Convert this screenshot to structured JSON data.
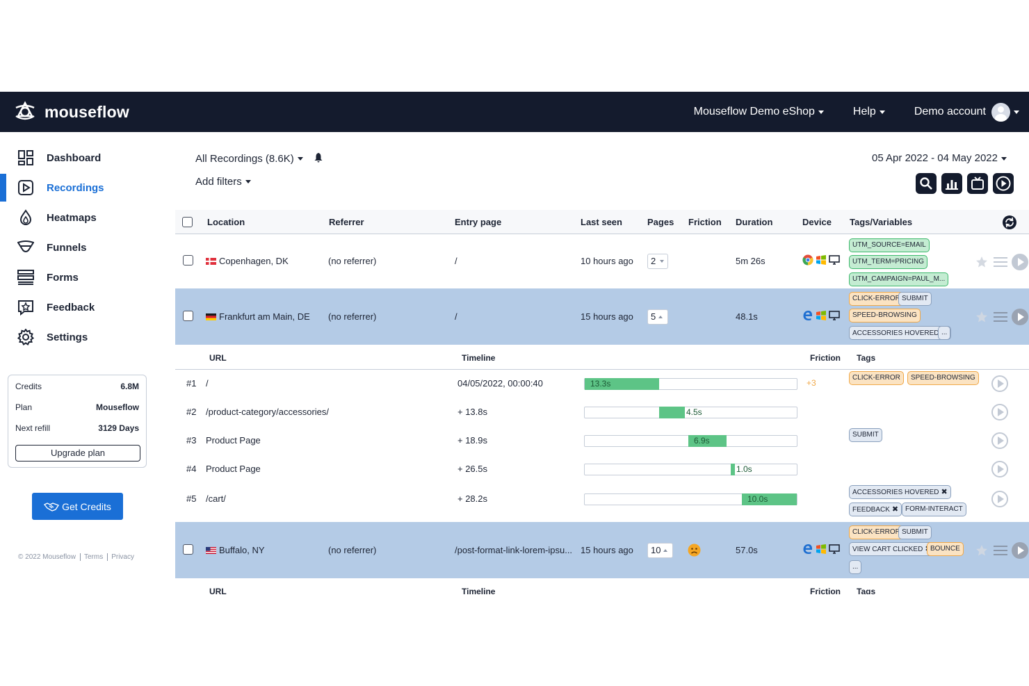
{
  "app": {
    "brand": "mouseflow",
    "accent": "#1a6fd6",
    "navbar_bg": "#141b2d"
  },
  "topnav": {
    "site": "Mouseflow Demo eShop",
    "help": "Help",
    "account": "Demo account"
  },
  "sidebar": {
    "items": [
      {
        "label": "Dashboard",
        "icon": "dashboard-icon"
      },
      {
        "label": "Recordings",
        "icon": "recordings-icon",
        "active": true
      },
      {
        "label": "Heatmaps",
        "icon": "heatmaps-icon"
      },
      {
        "label": "Funnels",
        "icon": "funnels-icon"
      },
      {
        "label": "Forms",
        "icon": "forms-icon"
      },
      {
        "label": "Feedback",
        "icon": "feedback-icon"
      },
      {
        "label": "Settings",
        "icon": "settings-icon"
      }
    ],
    "credits": {
      "credits_label": "Credits",
      "credits_value": "6.8M",
      "plan_label": "Plan",
      "plan_value": "Mouseflow",
      "refill_label": "Next refill",
      "refill_value": "3129 Days",
      "upgrade": "Upgrade plan"
    },
    "get_credits": "Get Credits",
    "footer": {
      "copyright": "© 2022 Mouseflow",
      "terms": "Terms",
      "privacy": "Privacy"
    }
  },
  "filters": {
    "recordings": "All Recordings (8.6K)",
    "add_filters": "Add filters",
    "date_range": "05 Apr 2022 - 04 May 2022"
  },
  "table": {
    "headers": {
      "location": "Location",
      "referrer": "Referrer",
      "entry": "Entry page",
      "last_seen": "Last seen",
      "pages": "Pages",
      "friction": "Friction",
      "duration": "Duration",
      "device": "Device",
      "tags": "Tags/Variables"
    },
    "rows": [
      {
        "location": "Copenhagen, DK",
        "referrer": "(no referrer)",
        "entry": "/",
        "last_seen": "10 hours ago",
        "pages": "2",
        "duration": "5m 26s",
        "tags": [
          "UTM_SOURCE=EMAIL",
          "UTM_TERM=PRICING",
          "UTM_CAMPAIGN=PAUL_M..."
        ]
      },
      {
        "location": "Frankfurt am Main, DE",
        "referrer": "(no referrer)",
        "entry": "/",
        "last_seen": "15 hours ago",
        "pages": "5",
        "duration": "48.1s",
        "tags": [
          "CLICK-ERROR",
          "SUBMIT",
          "SPEED-BROWSING",
          "ACCESSORIES HOVERED",
          "..."
        ]
      },
      {
        "location": "Buffalo, NY",
        "referrer": "(no referrer)",
        "entry": "/post-format-link-lorem-ipsu...",
        "last_seen": "15 hours ago",
        "pages": "10",
        "duration": "57.0s",
        "tags": [
          "CLICK-ERROR",
          "SUBMIT",
          "VIEW CART CLICKED",
          "BOUNCE",
          "..."
        ]
      }
    ],
    "subheaders": {
      "url": "URL",
      "timeline": "Timeline",
      "friction": "Friction",
      "tags": "Tags"
    },
    "pageviews": [
      {
        "num": "#1",
        "url": "/",
        "time": "04/05/2022, 00:00:40",
        "duration": "13.3s",
        "start": 0.0,
        "fraction": 0.35,
        "friction": "+3",
        "tags": [
          "CLICK-ERROR",
          "SPEED-BROWSING"
        ]
      },
      {
        "num": "#2",
        "url": "/product-category/accessories/",
        "time": "+ 13.8s",
        "duration": "4.5s",
        "start": 0.35,
        "fraction": 0.12,
        "friction": "",
        "tags": []
      },
      {
        "num": "#3",
        "url": "Product Page",
        "time": "+ 18.9s",
        "duration": "6.9s",
        "start": 0.49,
        "fraction": 0.18,
        "friction": "",
        "tags": [
          "SUBMIT"
        ]
      },
      {
        "num": "#4",
        "url": "Product Page",
        "time": "+ 26.5s",
        "duration": "1.0s",
        "start": 0.69,
        "fraction": 0.02,
        "friction": "",
        "tags": []
      },
      {
        "num": "#5",
        "url": "/cart/",
        "time": "+ 28.2s",
        "duration": "10.0s",
        "start": 0.74,
        "fraction": 0.26,
        "friction": "",
        "tags": [
          "ACCESSORIES HOVERED",
          "FEEDBACK",
          "FORM-INTERACT"
        ]
      }
    ]
  }
}
